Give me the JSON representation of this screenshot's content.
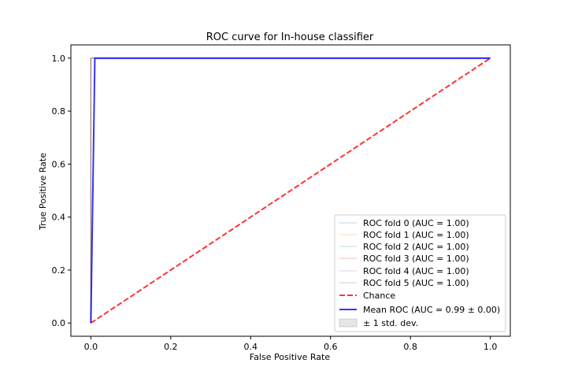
{
  "chart_data": {
    "type": "line",
    "title": "ROC curve for In-house classifier",
    "xlabel": "False Positive Rate",
    "ylabel": "True Positive Rate",
    "xlim": [
      -0.05,
      1.05
    ],
    "ylim": [
      -0.05,
      1.05
    ],
    "x_ticks": [
      "0.0",
      "0.2",
      "0.4",
      "0.6",
      "0.8",
      "1.0"
    ],
    "y_ticks": [
      "0.0",
      "0.2",
      "0.4",
      "0.6",
      "0.8",
      "1.0"
    ],
    "grid": false,
    "legend_position": "lower-right",
    "series": [
      {
        "name": "ROC fold 0 (AUC = 1.00)",
        "color": "#1f77b4",
        "style": "thin",
        "x": [
          0,
          0,
          1
        ],
        "y": [
          0,
          1,
          1
        ]
      },
      {
        "name": "ROC fold 1 (AUC = 1.00)",
        "color": "#ff7f0e",
        "style": "thin",
        "x": [
          0,
          0,
          1
        ],
        "y": [
          0,
          1,
          1
        ]
      },
      {
        "name": "ROC fold 2 (AUC = 1.00)",
        "color": "#2ca02c",
        "style": "thin",
        "x": [
          0,
          0,
          1
        ],
        "y": [
          0,
          1,
          1
        ]
      },
      {
        "name": "ROC fold 3 (AUC = 1.00)",
        "color": "#d62728",
        "style": "thin",
        "x": [
          0,
          0,
          1
        ],
        "y": [
          0,
          1,
          1
        ]
      },
      {
        "name": "ROC fold 4 (AUC = 1.00)",
        "color": "#9467bd",
        "style": "thin",
        "x": [
          0,
          0,
          1
        ],
        "y": [
          0,
          1,
          1
        ]
      },
      {
        "name": "ROC fold 5 (AUC = 1.00)",
        "color": "#8c564b",
        "style": "thin",
        "x": [
          0,
          0,
          1
        ],
        "y": [
          0,
          1,
          1
        ]
      },
      {
        "name": "Chance",
        "color": "#ff0000",
        "style": "dashed",
        "x": [
          0,
          1
        ],
        "y": [
          0,
          1
        ]
      },
      {
        "name": "Mean ROC (AUC = 0.99 ± 0.00)",
        "color": "#0000ff",
        "style": "mean",
        "x": [
          0,
          0.01,
          1
        ],
        "y": [
          0,
          1,
          1
        ]
      }
    ],
    "band": {
      "name": "± 1 std. dev.",
      "color": "#808080"
    }
  }
}
